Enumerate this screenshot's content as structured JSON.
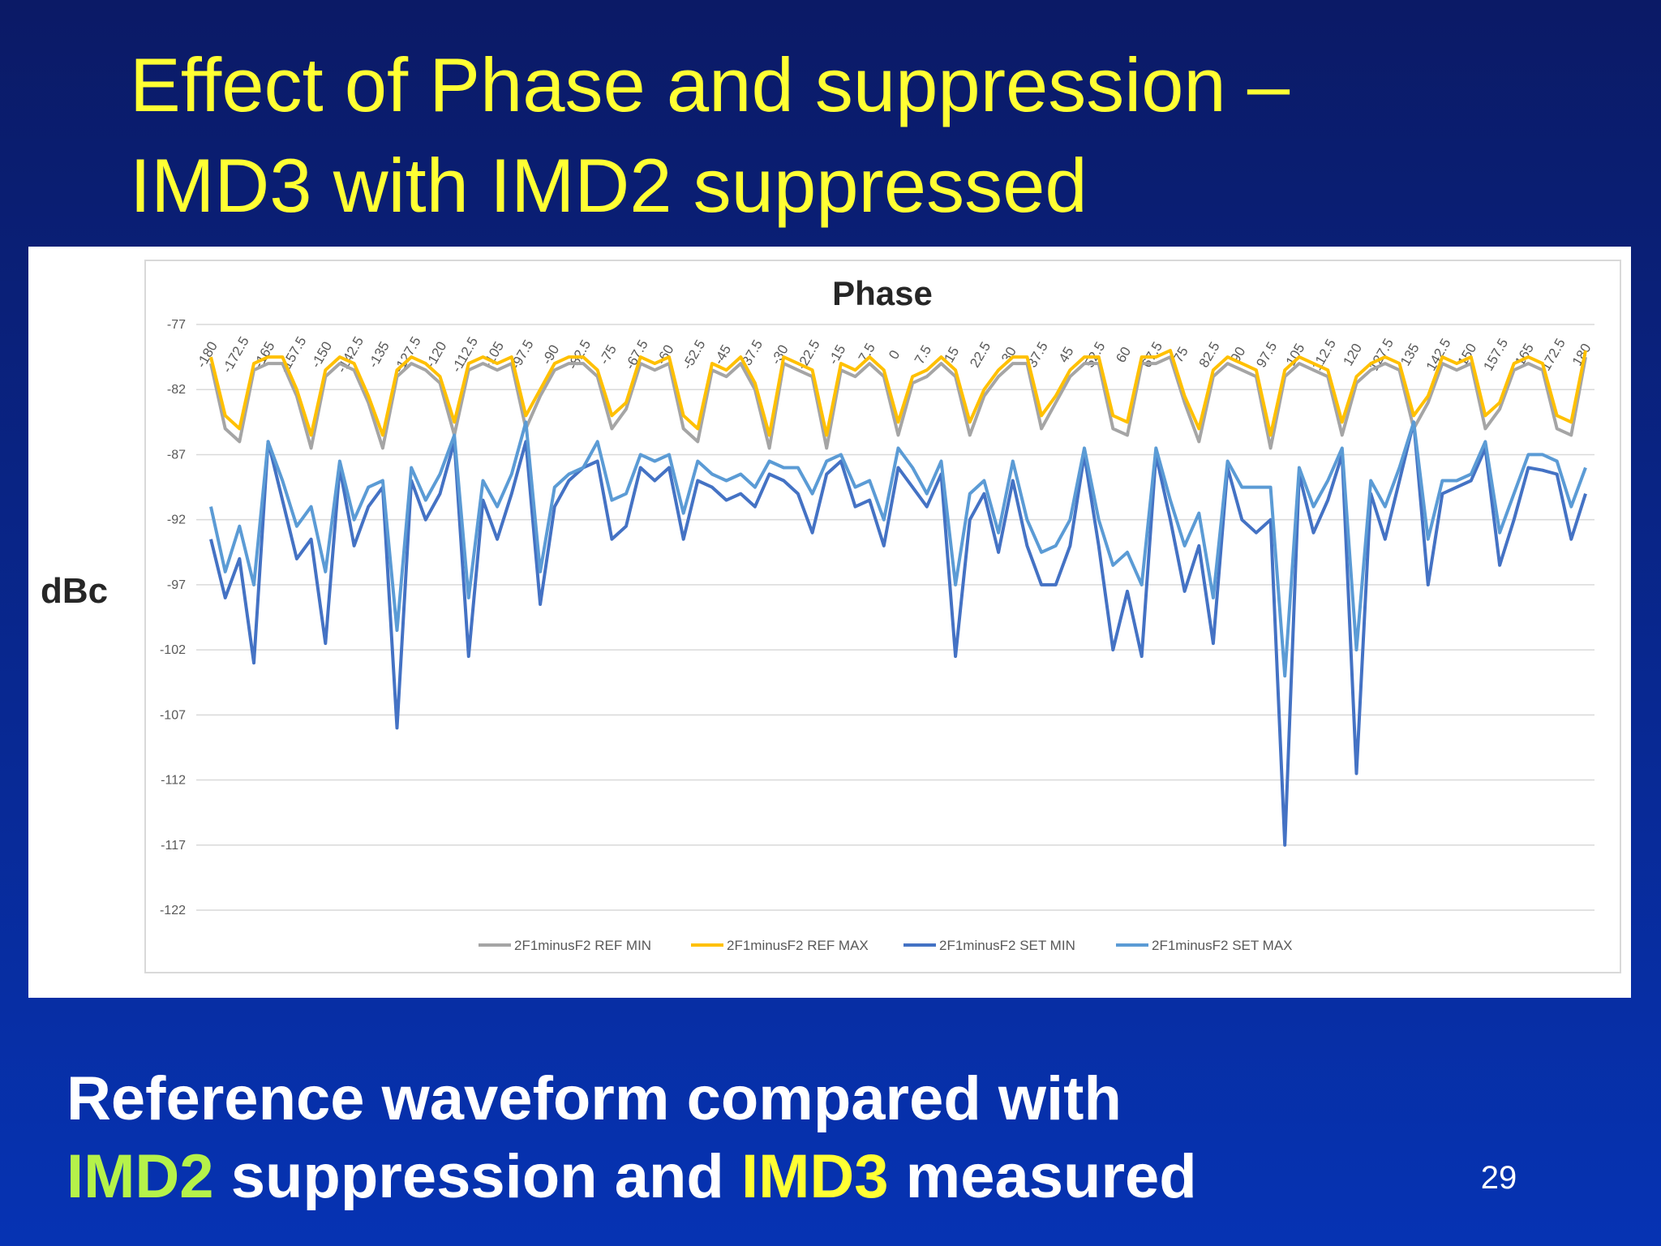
{
  "slide": {
    "title": [
      "Effect of Phase and suppression –",
      "IMD3 with IMD2 suppressed"
    ],
    "footer": {
      "line1": "Reference waveform compared with",
      "line2": [
        "IMD2",
        "suppression and",
        "IMD3",
        "measured"
      ]
    },
    "page_number": "29"
  },
  "chart_data": {
    "type": "line",
    "title": "Phase",
    "y_label": "dBc",
    "legend": "bottom",
    "grid": true,
    "ylim": [
      -122,
      -77
    ],
    "yticks": [
      -77,
      -82,
      -87,
      -92,
      -97,
      -102,
      -107,
      -112,
      -117,
      -122
    ],
    "categories": [
      "-180",
      null,
      "-172.5",
      null,
      "-165",
      null,
      "-157.5",
      null,
      "-150",
      null,
      "-142.5",
      null,
      "-135",
      null,
      "-127.5",
      null,
      "-120",
      null,
      "-112.5",
      null,
      "-105",
      null,
      "-97.5",
      null,
      "-90",
      null,
      "-82.5",
      null,
      "-75",
      null,
      "-67.5",
      null,
      "-60",
      null,
      "-52.5",
      null,
      "-45",
      null,
      "-37.5",
      null,
      "-30",
      null,
      "-22.5",
      null,
      "-15",
      null,
      "-7.5",
      null,
      "0",
      null,
      "7.5",
      null,
      "15",
      null,
      "22.5",
      null,
      "30",
      null,
      "37.5",
      null,
      "45",
      null,
      "52.5",
      null,
      "60",
      null,
      "67.5",
      null,
      "75",
      null,
      "82.5",
      null,
      "90",
      null,
      "97.5",
      null,
      "105",
      null,
      "112.5",
      null,
      "120",
      null,
      "127.5",
      null,
      "135",
      null,
      "142.5",
      null,
      "150",
      null,
      "157.5",
      null,
      "165",
      null,
      "172.5",
      null,
      "180"
    ],
    "series": [
      {
        "name": "2F1minusF2 REF MIN",
        "color": "#a5a5a5",
        "values": [
          -80,
          -85,
          -86,
          -80.5,
          -80,
          -80,
          -82.5,
          -86.5,
          -81,
          -80,
          -80.5,
          -83,
          -86.5,
          -81,
          -80,
          -80.5,
          -81.5,
          -85.5,
          -80.5,
          -80,
          -80.5,
          -80,
          -85,
          -82.5,
          -80.5,
          -80,
          -80,
          -81,
          -85,
          -83.5,
          -80,
          -80.5,
          -80,
          -85,
          -86,
          -80.5,
          -81,
          -80,
          -82,
          -86.5,
          -80,
          -80.5,
          -81,
          -86.5,
          -80.5,
          -81,
          -80,
          -81,
          -85.5,
          -81.5,
          -81,
          -80,
          -81,
          -85.5,
          -82.5,
          -81,
          -80,
          -80,
          -85,
          -83,
          -81,
          -80,
          -80,
          -85,
          -85.5,
          -80,
          -80,
          -79.5,
          -83,
          -86,
          -81,
          -80,
          -80.5,
          -81,
          -86.5,
          -81,
          -80,
          -80.5,
          -81,
          -85.5,
          -81.5,
          -80.5,
          -80,
          -80.5,
          -85,
          -83,
          -80,
          -80.5,
          -80,
          -85,
          -83.5,
          -80.5,
          -80,
          -80.5,
          -85,
          -85.5,
          -79.5
        ]
      },
      {
        "name": "2F1minusF2 REF MAX",
        "color": "#ffc000",
        "values": [
          -79.5,
          -84,
          -85,
          -80,
          -79.5,
          -79.5,
          -82,
          -85.5,
          -80.5,
          -79.5,
          -80,
          -82.5,
          -85.5,
          -80.5,
          -79.5,
          -80,
          -81,
          -84.5,
          -80,
          -79.5,
          -80,
          -79.5,
          -84,
          -82,
          -80,
          -79.5,
          -79.5,
          -80.5,
          -84,
          -83,
          -79.5,
          -80,
          -79.5,
          -84,
          -85,
          -80,
          -80.5,
          -79.5,
          -81.5,
          -85.5,
          -79.5,
          -80,
          -80.5,
          -85.5,
          -80,
          -80.5,
          -79.5,
          -80.5,
          -84.5,
          -81,
          -80.5,
          -79.5,
          -80.5,
          -84.5,
          -82,
          -80.5,
          -79.5,
          -79.5,
          -84,
          -82.5,
          -80.5,
          -79.5,
          -79.5,
          -84,
          -84.5,
          -79.5,
          -79.5,
          -79,
          -82.5,
          -85,
          -80.5,
          -79.5,
          -80,
          -80.5,
          -85.5,
          -80.5,
          -79.5,
          -80,
          -80.5,
          -84.5,
          -81,
          -80,
          -79.5,
          -80,
          -84,
          -82.5,
          -79.5,
          -80,
          -79.5,
          -84,
          -83,
          -80,
          -79.5,
          -80,
          -84,
          -84.5,
          -79
        ]
      },
      {
        "name": "2F1minusF2 SET MIN",
        "color": "#4472c4",
        "values": [
          -93.5,
          -98,
          -95,
          -103,
          -86,
          -90.5,
          -95,
          -93.5,
          -101.5,
          -88,
          -94,
          -91,
          -89.5,
          -108,
          -89,
          -92,
          -90,
          -86,
          -102.5,
          -90.5,
          -93.5,
          -90,
          -86,
          -98.5,
          -91,
          -89,
          -88,
          -87.5,
          -93.5,
          -92.5,
          -88,
          -89,
          -88,
          -93.5,
          -89,
          -89.5,
          -90.5,
          -90,
          -91,
          -88.5,
          -89,
          -90,
          -93,
          -88.5,
          -87.5,
          -91,
          -90.5,
          -94,
          -88,
          -89.5,
          -91,
          -88.5,
          -102.5,
          -92,
          -90,
          -94.5,
          -89,
          -94,
          -97,
          -97,
          -94,
          -87,
          -94,
          -102,
          -97.5,
          -102.5,
          -87,
          -92,
          -97.5,
          -94,
          -101.5,
          -88,
          -92,
          -93,
          -92,
          -117,
          -88.5,
          -93,
          -90.5,
          -87,
          -111.5,
          -90,
          -93.5,
          -89,
          -84.5,
          -97,
          -90,
          -89.5,
          -89,
          -86.5,
          -95.5,
          -92,
          -88,
          -88.2,
          -88.5,
          -93.5,
          -90
        ]
      },
      {
        "name": "2F1minusF2 SET MAX",
        "color": "#5b9bd5",
        "values": [
          -91,
          -96,
          -92.5,
          -97,
          -86,
          -89,
          -92.5,
          -91,
          -96,
          -87.5,
          -92,
          -89.5,
          -89,
          -100.5,
          -88,
          -90.5,
          -88.5,
          -85.5,
          -98,
          -89,
          -91,
          -88.5,
          -84.5,
          -96,
          -89.5,
          -88.5,
          -88,
          -86,
          -90.5,
          -90,
          -87,
          -87.5,
          -87,
          -91.5,
          -87.5,
          -88.5,
          -89,
          -88.5,
          -89.5,
          -87.5,
          -88,
          -88,
          -90,
          -87.5,
          -87,
          -89.5,
          -89,
          -92,
          -86.5,
          -88,
          -90,
          -87.5,
          -97,
          -90,
          -89,
          -93,
          -87.5,
          -92,
          -94.5,
          -94,
          -92,
          -86.5,
          -92,
          -95.5,
          -94.5,
          -97,
          -86.5,
          -90.5,
          -94,
          -91.5,
          -98,
          -87.5,
          -89.5,
          -89.5,
          -89.5,
          -104,
          -88,
          -91,
          -89,
          -86.5,
          -102,
          -89,
          -91,
          -88,
          -84.5,
          -93.5,
          -89,
          -89,
          -88.5,
          -86,
          -93,
          -90,
          -87,
          -87,
          -87.5,
          -91,
          -88
        ]
      }
    ]
  }
}
